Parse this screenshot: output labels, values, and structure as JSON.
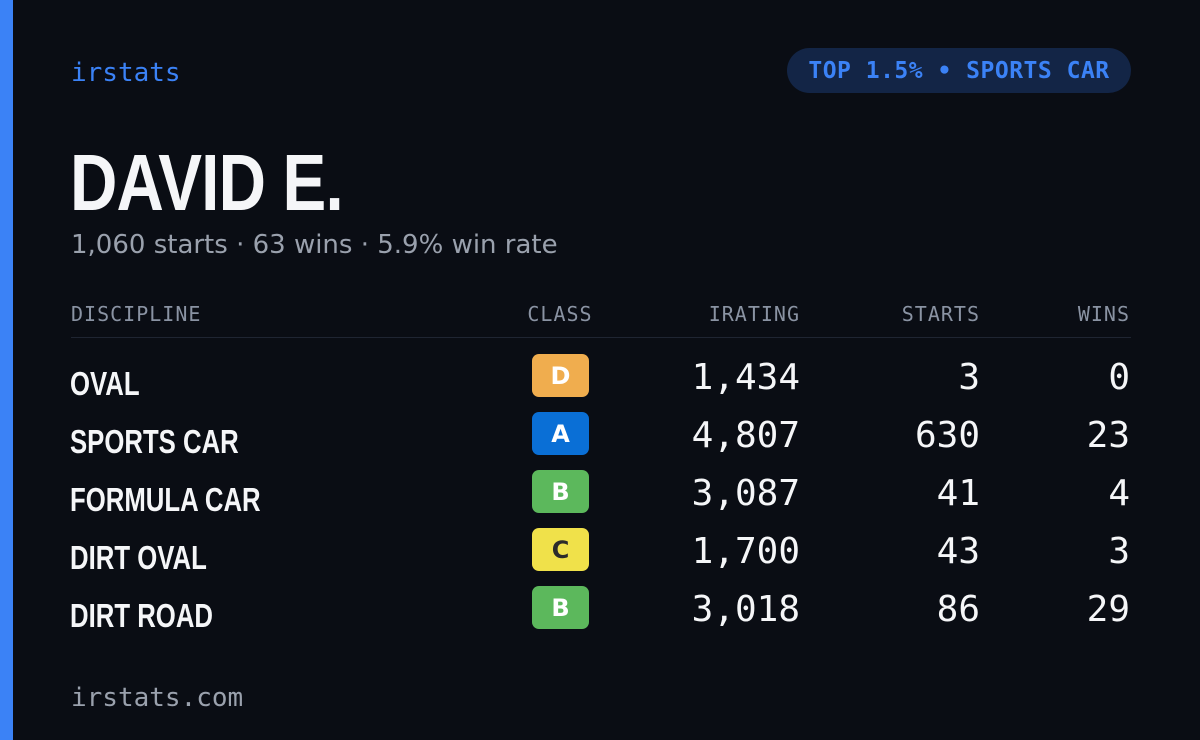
{
  "brand": "irstats",
  "rank_badge": "TOP 1.5% • SPORTS CAR",
  "driver": {
    "name": "DAVID E.",
    "summary": "1,060 starts · 63 wins · 5.9% win rate"
  },
  "table": {
    "headers": {
      "discipline": "DISCIPLINE",
      "class": "CLASS",
      "irating": "IRATING",
      "starts": "STARTS",
      "wins": "WINS"
    },
    "rows": [
      {
        "discipline": "OVAL",
        "class": "D",
        "class_color": "#f0ad4e",
        "class_text_color": "#ffffff",
        "irating": "1,434",
        "starts": "3",
        "wins": "0"
      },
      {
        "discipline": "SPORTS CAR",
        "class": "A",
        "class_color": "#0a6fd6",
        "class_text_color": "#ffffff",
        "irating": "4,807",
        "starts": "630",
        "wins": "23"
      },
      {
        "discipline": "FORMULA CAR",
        "class": "B",
        "class_color": "#5cb85c",
        "class_text_color": "#ffffff",
        "irating": "3,087",
        "starts": "41",
        "wins": "4"
      },
      {
        "discipline": "DIRT OVAL",
        "class": "C",
        "class_color": "#f0e14a",
        "class_text_color": "#2b2b2b",
        "irating": "1,700",
        "starts": "43",
        "wins": "3"
      },
      {
        "discipline": "DIRT ROAD",
        "class": "B",
        "class_color": "#5cb85c",
        "class_text_color": "#ffffff",
        "irating": "3,018",
        "starts": "86",
        "wins": "29"
      }
    ]
  },
  "footer": "irstats.com",
  "colors": {
    "accent": "#3b82f6",
    "background": "#0a0d14",
    "pill_background": "#132546"
  }
}
